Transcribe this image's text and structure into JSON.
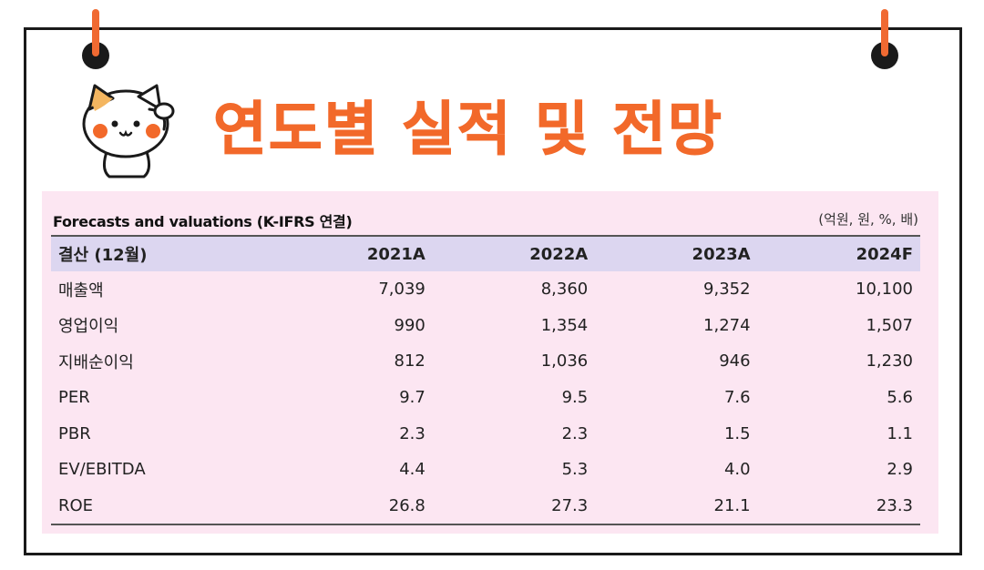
{
  "title": "연도별 실적 및 전망",
  "caption": {
    "left": "Forecasts and valuations (K-IFRS 연결)",
    "right": "(억원, 원, %, 배)"
  },
  "table": {
    "headers": [
      "결산 (12월)",
      "2021A",
      "2022A",
      "2023A",
      "2024F"
    ],
    "rows": [
      [
        "매출액",
        "7,039",
        "8,360",
        "9,352",
        "10,100"
      ],
      [
        "영업이익",
        "990",
        "1,354",
        "1,274",
        "1,507"
      ],
      [
        "지배순이익",
        "812",
        "1,036",
        "946",
        "1,230"
      ],
      [
        "PER",
        "9.7",
        "9.5",
        "7.6",
        "5.6"
      ],
      [
        "PBR",
        "2.3",
        "2.3",
        "1.5",
        "1.1"
      ],
      [
        "EV/EBITDA",
        "4.4",
        "5.3",
        "4.0",
        "2.9"
      ],
      [
        "ROE",
        "26.8",
        "27.3",
        "21.1",
        "23.3"
      ]
    ]
  },
  "colors": {
    "accent": "#f2692a",
    "panel": "#fce6f2",
    "header_row": "#dcd6f0"
  },
  "icons": {
    "mascot": "cat-mascot-icon",
    "binder_rings": "binder-ring-icon"
  }
}
